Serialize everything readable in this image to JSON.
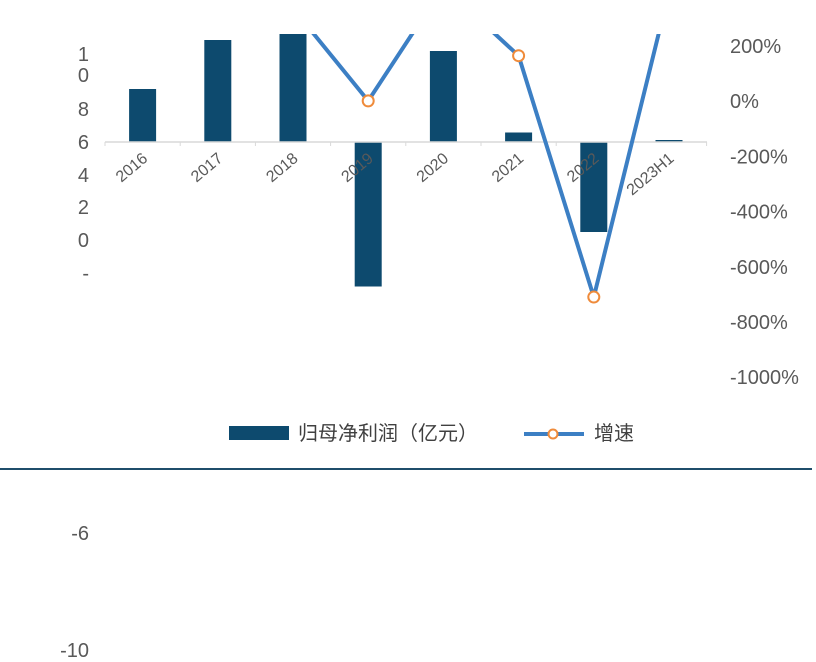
{
  "chart_data": {
    "type": "bar",
    "categories": [
      "2016",
      "2017",
      "2018",
      "2019",
      "2020",
      "2021",
      "2022",
      "2023H1"
    ],
    "series": [
      {
        "name": "归母净利润（亿元）",
        "type": "bar",
        "axis": "left",
        "color": "#0d4a6e",
        "values": [
          10.6,
          20.4,
          22.0,
          -28.9,
          18.2,
          1.9,
          -18.0,
          0.4
        ]
      },
      {
        "name": "增速",
        "type": "line",
        "axis": "right",
        "color": "#3c7fc4",
        "marker_color": "#ef8b3b",
        "values": [
          null,
          null,
          340,
          4,
          420,
          168,
          -708,
          400
        ]
      }
    ],
    "left_axis": {
      "visible_tick_labels": [
        "1\n0",
        "8",
        "6",
        "4",
        "2",
        "0",
        "-",
        "-6",
        "-10"
      ]
    },
    "right_axis": {
      "tick_labels": [
        "200%",
        "0%",
        "-200%",
        "-400%",
        "-600%",
        "-800%",
        "-1000%"
      ],
      "range": [
        -1000,
        200
      ]
    },
    "legend": {
      "position": "bottom"
    }
  }
}
